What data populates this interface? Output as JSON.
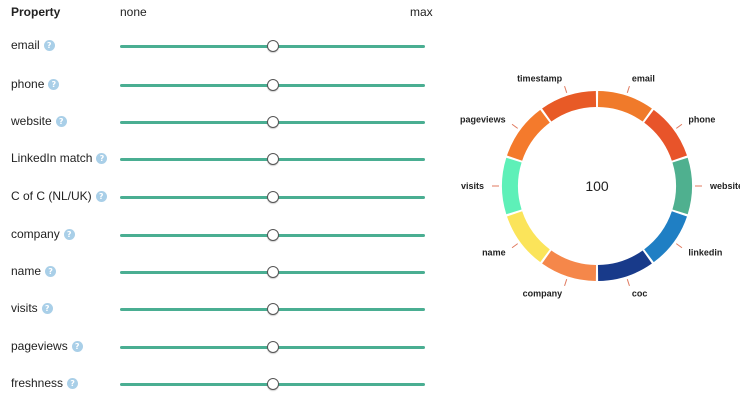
{
  "header": {
    "property": "Property",
    "none": "none",
    "max": "max"
  },
  "properties": [
    {
      "label": "email",
      "help_icon": "help-icon",
      "value_fraction": 0.5
    },
    {
      "label": "phone",
      "help_icon": "help-icon",
      "value_fraction": 0.5
    },
    {
      "label": "website",
      "help_icon": "help-icon",
      "value_fraction": 0.5
    },
    {
      "label": "LinkedIn match",
      "help_icon": "help-icon",
      "value_fraction": 0.5
    },
    {
      "label": "C of C (NL/UK)",
      "help_icon": "help-icon",
      "value_fraction": 0.5
    },
    {
      "label": "company",
      "help_icon": "help-icon",
      "value_fraction": 0.5
    },
    {
      "label": "name",
      "help_icon": "help-icon",
      "value_fraction": 0.5
    },
    {
      "label": "visits",
      "help_icon": "help-icon",
      "value_fraction": 0.5
    },
    {
      "label": "pageviews",
      "help_icon": "help-icon",
      "value_fraction": 0.5
    },
    {
      "label": "freshness",
      "help_icon": "help-icon",
      "value_fraction": 0.5
    }
  ],
  "chart_data": {
    "type": "pie",
    "center_value": "100",
    "categories": [
      "email",
      "phone",
      "website",
      "linkedin",
      "coc",
      "company",
      "name",
      "visits",
      "pageviews",
      "timestamp"
    ],
    "values": [
      10,
      10,
      10,
      10,
      10,
      10,
      10,
      10,
      10,
      10
    ],
    "colors": [
      "#f07a2a",
      "#e8542a",
      "#4fb08f",
      "#1f7fc4",
      "#183a8a",
      "#f5874a",
      "#fbe45a",
      "#5ef0b8",
      "#f47a2c",
      "#e85a26"
    ]
  },
  "colors": {
    "slider_track": "#4aae92",
    "help_icon": "#a9cfe8"
  }
}
